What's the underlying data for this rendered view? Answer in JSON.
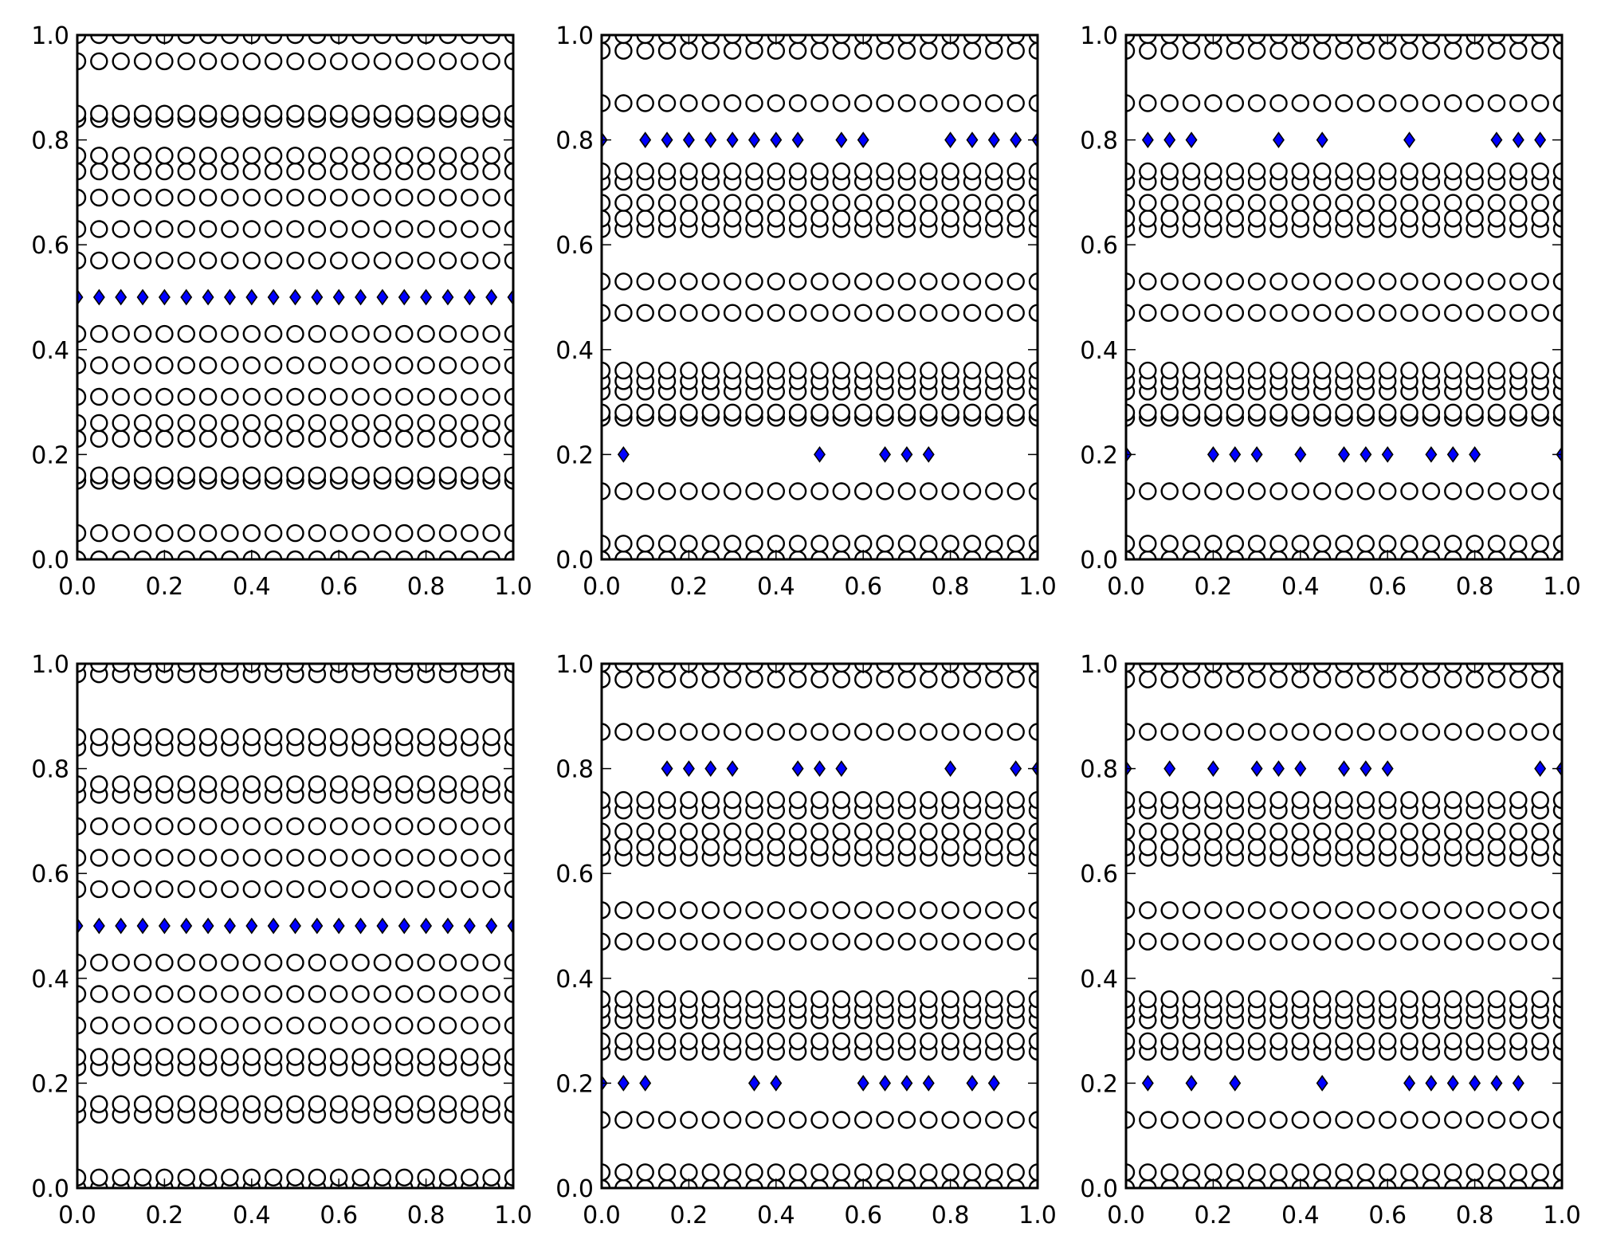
{
  "chart_data": [
    {
      "type": "scatter",
      "xlim": [
        0,
        1
      ],
      "ylim": [
        0,
        1
      ],
      "xticks": [
        "0.0",
        "0.2",
        "0.4",
        "0.6",
        "0.8",
        "1.0"
      ],
      "yticks": [
        "0.0",
        "0.2",
        "0.4",
        "0.6",
        "0.8",
        "1.0"
      ],
      "x": [
        0.0,
        0.05,
        0.1,
        0.15,
        0.2,
        0.25,
        0.3,
        0.35,
        0.4,
        0.45,
        0.5,
        0.55,
        0.6,
        0.65,
        0.7,
        0.75,
        0.8,
        0.85,
        0.9,
        0.95,
        1.0
      ],
      "series": [
        {
          "marker": "circle",
          "color": "#ffffff",
          "edge_color": "#000000",
          "row_levels": [
            0.0,
            0.05,
            0.15,
            0.16,
            0.23,
            0.26,
            0.31,
            0.37,
            0.43,
            0.57,
            0.63,
            0.69,
            0.74,
            0.77,
            0.84,
            0.85,
            0.95,
            1.0
          ]
        },
        {
          "marker": "diamond",
          "color": "#0000ff",
          "edge_color": "#000000",
          "points": [
            [
              0.0,
              0.5
            ],
            [
              0.05,
              0.5
            ],
            [
              0.1,
              0.5
            ],
            [
              0.15,
              0.5
            ],
            [
              0.2,
              0.5
            ],
            [
              0.25,
              0.5
            ],
            [
              0.3,
              0.5
            ],
            [
              0.35,
              0.5
            ],
            [
              0.4,
              0.5
            ],
            [
              0.45,
              0.5
            ],
            [
              0.5,
              0.5
            ],
            [
              0.55,
              0.5
            ],
            [
              0.6,
              0.5
            ],
            [
              0.65,
              0.5
            ],
            [
              0.7,
              0.5
            ],
            [
              0.75,
              0.5
            ],
            [
              0.8,
              0.5
            ],
            [
              0.85,
              0.5
            ],
            [
              0.9,
              0.5
            ],
            [
              0.95,
              0.5
            ],
            [
              1.0,
              0.5
            ]
          ]
        }
      ]
    },
    {
      "type": "scatter",
      "xlim": [
        0,
        1
      ],
      "ylim": [
        0,
        1
      ],
      "xticks": [
        "0.0",
        "0.2",
        "0.4",
        "0.6",
        "0.8",
        "1.0"
      ],
      "yticks": [
        "0.0",
        "0.2",
        "0.4",
        "0.6",
        "0.8",
        "1.0"
      ],
      "x": [
        0.0,
        0.05,
        0.1,
        0.15,
        0.2,
        0.25,
        0.3,
        0.35,
        0.4,
        0.45,
        0.5,
        0.55,
        0.6,
        0.65,
        0.7,
        0.75,
        0.8,
        0.85,
        0.9,
        0.95,
        1.0
      ],
      "series": [
        {
          "marker": "circle",
          "color": "#ffffff",
          "edge_color": "#000000",
          "row_levels": [
            0.0,
            0.03,
            0.13,
            0.27,
            0.28,
            0.32,
            0.34,
            0.36,
            0.47,
            0.53,
            0.63,
            0.65,
            0.68,
            0.72,
            0.74,
            0.87,
            0.97,
            1.0
          ]
        },
        {
          "marker": "diamond",
          "color": "#0000ff",
          "edge_color": "#000000",
          "points": [
            [
              0.0,
              0.8
            ],
            [
              0.1,
              0.8
            ],
            [
              0.15,
              0.8
            ],
            [
              0.2,
              0.8
            ],
            [
              0.25,
              0.8
            ],
            [
              0.3,
              0.8
            ],
            [
              0.35,
              0.8
            ],
            [
              0.4,
              0.8
            ],
            [
              0.45,
              0.8
            ],
            [
              0.55,
              0.8
            ],
            [
              0.6,
              0.8
            ],
            [
              0.8,
              0.8
            ],
            [
              0.85,
              0.8
            ],
            [
              0.9,
              0.8
            ],
            [
              0.95,
              0.8
            ],
            [
              1.0,
              0.8
            ],
            [
              0.05,
              0.2
            ],
            [
              0.5,
              0.2
            ],
            [
              0.65,
              0.2
            ],
            [
              0.7,
              0.2
            ],
            [
              0.75,
              0.2
            ]
          ]
        }
      ]
    },
    {
      "type": "scatter",
      "xlim": [
        0,
        1
      ],
      "ylim": [
        0,
        1
      ],
      "xticks": [
        "0.0",
        "0.2",
        "0.4",
        "0.6",
        "0.8",
        "1.0"
      ],
      "yticks": [
        "0.0",
        "0.2",
        "0.4",
        "0.6",
        "0.8",
        "1.0"
      ],
      "x": [
        0.0,
        0.05,
        0.1,
        0.15,
        0.2,
        0.25,
        0.3,
        0.35,
        0.4,
        0.45,
        0.5,
        0.55,
        0.6,
        0.65,
        0.7,
        0.75,
        0.8,
        0.85,
        0.9,
        0.95,
        1.0
      ],
      "series": [
        {
          "marker": "circle",
          "color": "#ffffff",
          "edge_color": "#000000",
          "row_levels": [
            0.0,
            0.03,
            0.13,
            0.27,
            0.28,
            0.32,
            0.34,
            0.36,
            0.47,
            0.53,
            0.63,
            0.65,
            0.68,
            0.72,
            0.74,
            0.87,
            0.97,
            1.0
          ]
        },
        {
          "marker": "diamond",
          "color": "#0000ff",
          "edge_color": "#000000",
          "points": [
            [
              0.05,
              0.8
            ],
            [
              0.1,
              0.8
            ],
            [
              0.15,
              0.8
            ],
            [
              0.35,
              0.8
            ],
            [
              0.45,
              0.8
            ],
            [
              0.65,
              0.8
            ],
            [
              0.85,
              0.8
            ],
            [
              0.9,
              0.8
            ],
            [
              0.95,
              0.8
            ],
            [
              0.0,
              0.2
            ],
            [
              0.2,
              0.2
            ],
            [
              0.25,
              0.2
            ],
            [
              0.3,
              0.2
            ],
            [
              0.4,
              0.2
            ],
            [
              0.5,
              0.2
            ],
            [
              0.55,
              0.2
            ],
            [
              0.6,
              0.2
            ],
            [
              0.7,
              0.2
            ],
            [
              0.75,
              0.2
            ],
            [
              0.8,
              0.2
            ],
            [
              1.0,
              0.2
            ]
          ]
        }
      ]
    },
    {
      "type": "scatter",
      "xlim": [
        0,
        1
      ],
      "ylim": [
        0,
        1
      ],
      "xticks": [
        "0.0",
        "0.2",
        "0.4",
        "0.6",
        "0.8",
        "1.0"
      ],
      "yticks": [
        "0.0",
        "0.2",
        "0.4",
        "0.6",
        "0.8",
        "1.0"
      ],
      "x": [
        0.0,
        0.05,
        0.1,
        0.15,
        0.2,
        0.25,
        0.3,
        0.35,
        0.4,
        0.45,
        0.5,
        0.55,
        0.6,
        0.65,
        0.7,
        0.75,
        0.8,
        0.85,
        0.9,
        0.95,
        1.0
      ],
      "series": [
        {
          "marker": "circle",
          "color": "#ffffff",
          "edge_color": "#000000",
          "row_levels": [
            0.0,
            0.02,
            0.14,
            0.16,
            0.23,
            0.25,
            0.31,
            0.37,
            0.43,
            0.57,
            0.63,
            0.69,
            0.75,
            0.77,
            0.84,
            0.86,
            0.98,
            1.0
          ]
        },
        {
          "marker": "diamond",
          "color": "#0000ff",
          "edge_color": "#000000",
          "points": [
            [
              0.0,
              0.5
            ],
            [
              0.05,
              0.5
            ],
            [
              0.1,
              0.5
            ],
            [
              0.15,
              0.5
            ],
            [
              0.2,
              0.5
            ],
            [
              0.25,
              0.5
            ],
            [
              0.3,
              0.5
            ],
            [
              0.35,
              0.5
            ],
            [
              0.4,
              0.5
            ],
            [
              0.45,
              0.5
            ],
            [
              0.5,
              0.5
            ],
            [
              0.55,
              0.5
            ],
            [
              0.6,
              0.5
            ],
            [
              0.65,
              0.5
            ],
            [
              0.7,
              0.5
            ],
            [
              0.75,
              0.5
            ],
            [
              0.8,
              0.5
            ],
            [
              0.85,
              0.5
            ],
            [
              0.9,
              0.5
            ],
            [
              0.95,
              0.5
            ],
            [
              1.0,
              0.5
            ]
          ]
        }
      ]
    },
    {
      "type": "scatter",
      "xlim": [
        0,
        1
      ],
      "ylim": [
        0,
        1
      ],
      "xticks": [
        "0.0",
        "0.2",
        "0.4",
        "0.6",
        "0.8",
        "1.0"
      ],
      "yticks": [
        "0.0",
        "0.2",
        "0.4",
        "0.6",
        "0.8",
        "1.0"
      ],
      "x": [
        0.0,
        0.05,
        0.1,
        0.15,
        0.2,
        0.25,
        0.3,
        0.35,
        0.4,
        0.45,
        0.5,
        0.55,
        0.6,
        0.65,
        0.7,
        0.75,
        0.8,
        0.85,
        0.9,
        0.95,
        1.0
      ],
      "series": [
        {
          "marker": "circle",
          "color": "#ffffff",
          "edge_color": "#000000",
          "row_levels": [
            0.0,
            0.03,
            0.13,
            0.26,
            0.28,
            0.32,
            0.34,
            0.36,
            0.47,
            0.53,
            0.63,
            0.65,
            0.68,
            0.72,
            0.74,
            0.87,
            0.97,
            1.0
          ]
        },
        {
          "marker": "diamond",
          "color": "#0000ff",
          "edge_color": "#000000",
          "points": [
            [
              0.15,
              0.8
            ],
            [
              0.2,
              0.8
            ],
            [
              0.25,
              0.8
            ],
            [
              0.3,
              0.8
            ],
            [
              0.45,
              0.8
            ],
            [
              0.5,
              0.8
            ],
            [
              0.55,
              0.8
            ],
            [
              0.8,
              0.8
            ],
            [
              0.95,
              0.8
            ],
            [
              1.0,
              0.8
            ],
            [
              0.0,
              0.2
            ],
            [
              0.05,
              0.2
            ],
            [
              0.1,
              0.2
            ],
            [
              0.35,
              0.2
            ],
            [
              0.4,
              0.2
            ],
            [
              0.6,
              0.2
            ],
            [
              0.65,
              0.2
            ],
            [
              0.7,
              0.2
            ],
            [
              0.75,
              0.2
            ],
            [
              0.85,
              0.2
            ],
            [
              0.9,
              0.2
            ]
          ]
        }
      ]
    },
    {
      "type": "scatter",
      "xlim": [
        0,
        1
      ],
      "ylim": [
        0,
        1
      ],
      "xticks": [
        "0.0",
        "0.2",
        "0.4",
        "0.6",
        "0.8",
        "1.0"
      ],
      "yticks": [
        "0.0",
        "0.2",
        "0.4",
        "0.6",
        "0.8",
        "1.0"
      ],
      "x": [
        0.0,
        0.05,
        0.1,
        0.15,
        0.2,
        0.25,
        0.3,
        0.35,
        0.4,
        0.45,
        0.5,
        0.55,
        0.6,
        0.65,
        0.7,
        0.75,
        0.8,
        0.85,
        0.9,
        0.95,
        1.0
      ],
      "series": [
        {
          "marker": "circle",
          "color": "#ffffff",
          "edge_color": "#000000",
          "row_levels": [
            0.0,
            0.03,
            0.13,
            0.26,
            0.28,
            0.32,
            0.34,
            0.36,
            0.47,
            0.53,
            0.63,
            0.65,
            0.68,
            0.72,
            0.74,
            0.87,
            0.97,
            1.0
          ]
        },
        {
          "marker": "diamond",
          "color": "#0000ff",
          "edge_color": "#000000",
          "points": [
            [
              0.0,
              0.8
            ],
            [
              0.1,
              0.8
            ],
            [
              0.2,
              0.8
            ],
            [
              0.3,
              0.8
            ],
            [
              0.35,
              0.8
            ],
            [
              0.4,
              0.8
            ],
            [
              0.5,
              0.8
            ],
            [
              0.55,
              0.8
            ],
            [
              0.6,
              0.8
            ],
            [
              0.95,
              0.8
            ],
            [
              1.0,
              0.8
            ],
            [
              0.05,
              0.2
            ],
            [
              0.15,
              0.2
            ],
            [
              0.25,
              0.2
            ],
            [
              0.45,
              0.2
            ],
            [
              0.65,
              0.2
            ],
            [
              0.7,
              0.2
            ],
            [
              0.75,
              0.2
            ],
            [
              0.8,
              0.2
            ],
            [
              0.85,
              0.2
            ],
            [
              0.9,
              0.2
            ]
          ]
        }
      ]
    }
  ]
}
